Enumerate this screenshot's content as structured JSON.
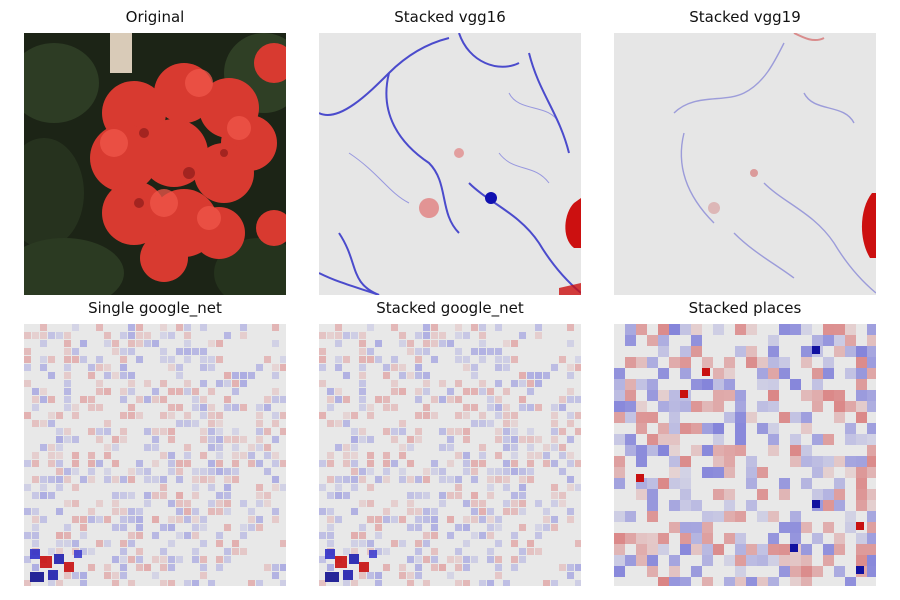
{
  "panels": [
    {
      "title": "Original",
      "kind": "photo",
      "subject": "red-geranium-flowers"
    },
    {
      "title": "Stacked vgg16",
      "kind": "saliency-smooth",
      "colors": {
        "negative": "#2020d0",
        "positive": "#d01010",
        "neutral": "#e6e6e6"
      }
    },
    {
      "title": "Stacked vgg19",
      "kind": "saliency-smooth",
      "colors": {
        "negative": "#2020d0",
        "positive": "#d01010",
        "neutral": "#e6e6e6"
      }
    },
    {
      "title": "Single google_net",
      "kind": "saliency-grid",
      "colors": {
        "negative": "#2020d0",
        "positive": "#d01010",
        "neutral": "#e6e6e6"
      }
    },
    {
      "title": "Stacked google_net",
      "kind": "saliency-grid",
      "colors": {
        "negative": "#2020d0",
        "positive": "#d01010",
        "neutral": "#e6e6e6"
      }
    },
    {
      "title": "Stacked places",
      "kind": "saliency-blocky",
      "colors": {
        "negative": "#2020d0",
        "positive": "#d01010",
        "neutral": "#e6e6e6"
      }
    }
  ]
}
